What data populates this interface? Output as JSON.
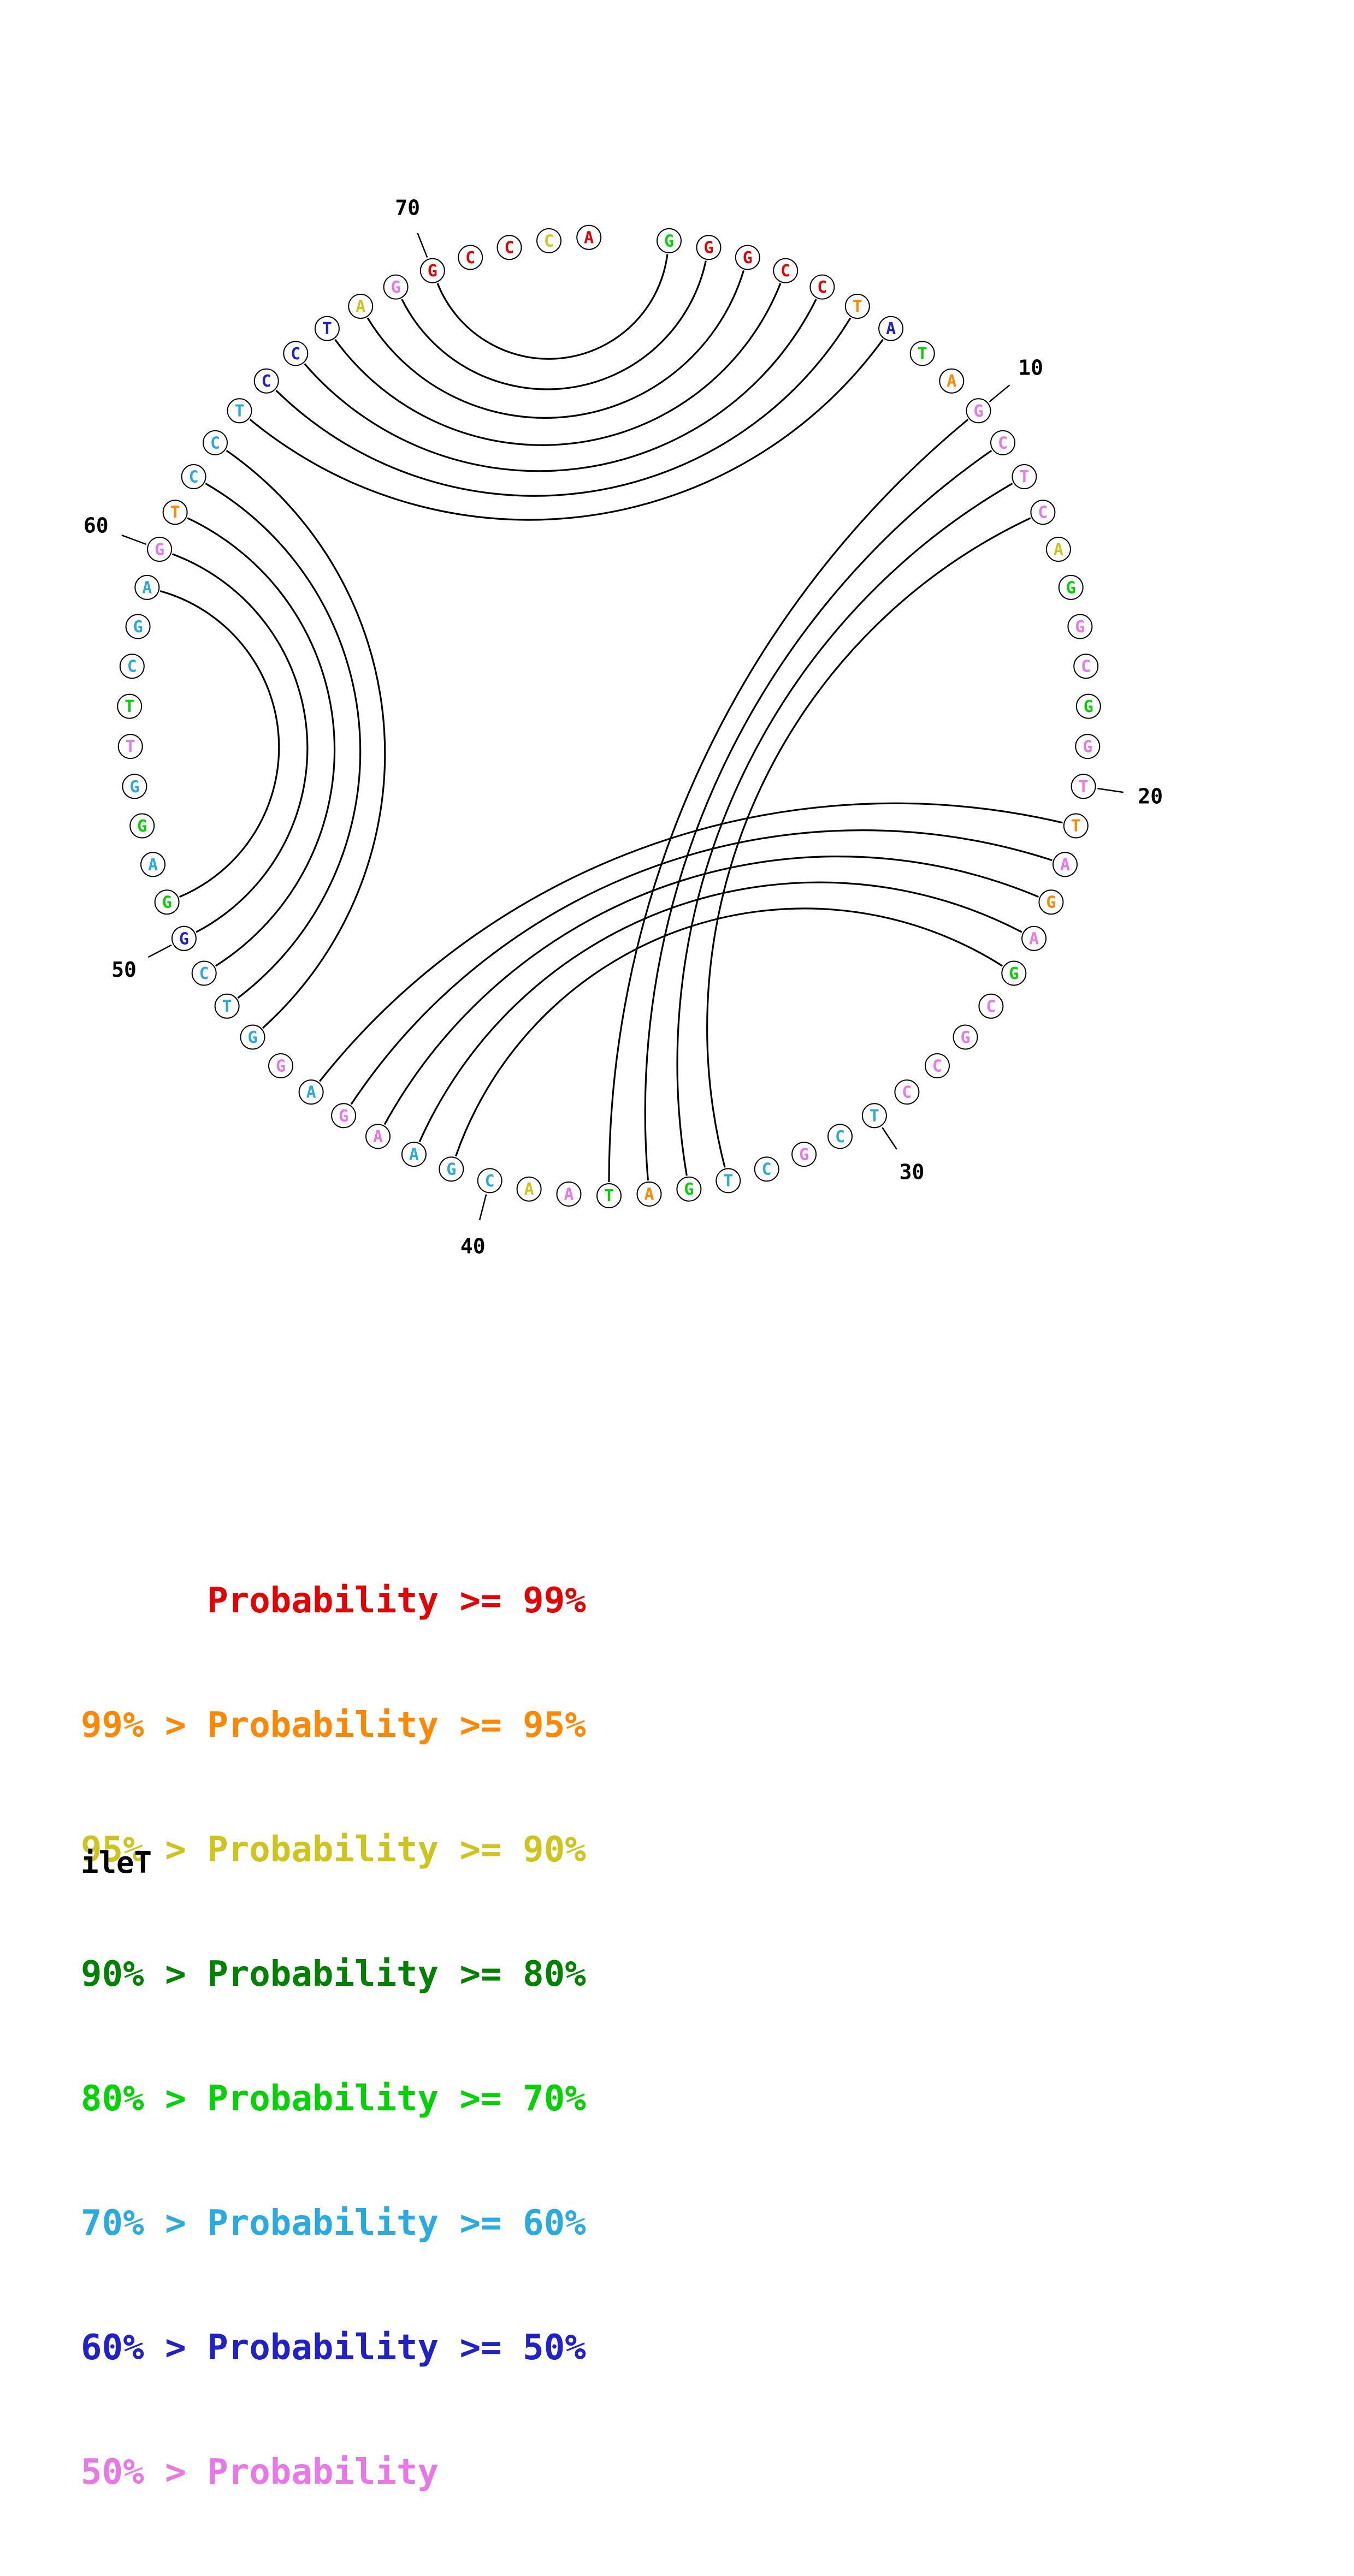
{
  "chart_data": {
    "type": "circular-rna-structure-probability-plot",
    "title": "ileT",
    "n_nucleotides": 74,
    "sequence": "GGGCCTATAGCTCAGGCGGTTAGAGCGCCTCGCTGATAACGAAGAGGTCGGAGGTTCGAGTCCTCCTAGGCCCA",
    "position_labels": [
      10,
      20,
      30,
      40,
      50,
      60,
      70
    ],
    "palette": {
      "p99": "#e60000",
      "p95": "#ff8800",
      "p90": "#cdc41c",
      "p80": "#008200",
      "p70": "#00d400",
      "p60": "#2aabe0",
      "p50": "#2121cc",
      "lt50": "#e878e8"
    },
    "nucleotides": [
      {
        "pos": 1,
        "base": "G",
        "level": "p70"
      },
      {
        "pos": 2,
        "base": "G",
        "level": "p99"
      },
      {
        "pos": 3,
        "base": "G",
        "level": "p99"
      },
      {
        "pos": 4,
        "base": "C",
        "level": "p99"
      },
      {
        "pos": 5,
        "base": "C",
        "level": "p99"
      },
      {
        "pos": 6,
        "base": "T",
        "level": "p95"
      },
      {
        "pos": 7,
        "base": "A",
        "level": "p50"
      },
      {
        "pos": 8,
        "base": "T",
        "level": "p70"
      },
      {
        "pos": 9,
        "base": "A",
        "level": "p95"
      },
      {
        "pos": 10,
        "base": "G",
        "level": "lt50"
      },
      {
        "pos": 11,
        "base": "C",
        "level": "lt50"
      },
      {
        "pos": 12,
        "base": "T",
        "level": "lt50"
      },
      {
        "pos": 13,
        "base": "C",
        "level": "lt50"
      },
      {
        "pos": 14,
        "base": "A",
        "level": "p90"
      },
      {
        "pos": 15,
        "base": "G",
        "level": "p70"
      },
      {
        "pos": 16,
        "base": "G",
        "level": "lt50"
      },
      {
        "pos": 17,
        "base": "C",
        "level": "lt50"
      },
      {
        "pos": 18,
        "base": "G",
        "level": "p70"
      },
      {
        "pos": 19,
        "base": "G",
        "level": "lt50"
      },
      {
        "pos": 20,
        "base": "T",
        "level": "lt50"
      },
      {
        "pos": 21,
        "base": "T",
        "level": "p95"
      },
      {
        "pos": 22,
        "base": "A",
        "level": "lt50"
      },
      {
        "pos": 23,
        "base": "G",
        "level": "p95"
      },
      {
        "pos": 24,
        "base": "A",
        "level": "lt50"
      },
      {
        "pos": 25,
        "base": "G",
        "level": "p70"
      },
      {
        "pos": 26,
        "base": "C",
        "level": "lt50"
      },
      {
        "pos": 27,
        "base": "G",
        "level": "lt50"
      },
      {
        "pos": 28,
        "base": "C",
        "level": "lt50"
      },
      {
        "pos": 29,
        "base": "C",
        "level": "lt50"
      },
      {
        "pos": 30,
        "base": "T",
        "level": "p60"
      },
      {
        "pos": 31,
        "base": "C",
        "level": "p60"
      },
      {
        "pos": 32,
        "base": "G",
        "level": "lt50"
      },
      {
        "pos": 33,
        "base": "C",
        "level": "p60"
      },
      {
        "pos": 34,
        "base": "T",
        "level": "p60"
      },
      {
        "pos": 35,
        "base": "G",
        "level": "p70"
      },
      {
        "pos": 36,
        "base": "A",
        "level": "p95"
      },
      {
        "pos": 37,
        "base": "T",
        "level": "p70"
      },
      {
        "pos": 38,
        "base": "A",
        "level": "lt50"
      },
      {
        "pos": 39,
        "base": "A",
        "level": "p90"
      },
      {
        "pos": 40,
        "base": "C",
        "level": "p60"
      },
      {
        "pos": 41,
        "base": "G",
        "level": "p60"
      },
      {
        "pos": 42,
        "base": "A",
        "level": "p60"
      },
      {
        "pos": 43,
        "base": "A",
        "level": "lt50"
      },
      {
        "pos": 44,
        "base": "G",
        "level": "lt50"
      },
      {
        "pos": 45,
        "base": "A",
        "level": "p60"
      },
      {
        "pos": 46,
        "base": "G",
        "level": "lt50"
      },
      {
        "pos": 47,
        "base": "G",
        "level": "p60"
      },
      {
        "pos": 48,
        "base": "T",
        "level": "p60"
      },
      {
        "pos": 49,
        "base": "C",
        "level": "p60"
      },
      {
        "pos": 50,
        "base": "G",
        "level": "p50"
      },
      {
        "pos": 51,
        "base": "G",
        "level": "p70"
      },
      {
        "pos": 52,
        "base": "A",
        "level": "p60"
      },
      {
        "pos": 53,
        "base": "G",
        "level": "p70"
      },
      {
        "pos": 54,
        "base": "G",
        "level": "p60"
      },
      {
        "pos": 55,
        "base": "T",
        "level": "lt50"
      },
      {
        "pos": 56,
        "base": "T",
        "level": "p70"
      },
      {
        "pos": 57,
        "base": "C",
        "level": "p60"
      },
      {
        "pos": 58,
        "base": "G",
        "level": "p60"
      },
      {
        "pos": 59,
        "base": "A",
        "level": "p60"
      },
      {
        "pos": 60,
        "base": "G",
        "level": "lt50"
      },
      {
        "pos": 61,
        "base": "T",
        "level": "p95"
      },
      {
        "pos": 62,
        "base": "C",
        "level": "p60"
      },
      {
        "pos": 63,
        "base": "C",
        "level": "p60"
      },
      {
        "pos": 64,
        "base": "T",
        "level": "p60"
      },
      {
        "pos": 65,
        "base": "C",
        "level": "p50"
      },
      {
        "pos": 66,
        "base": "C",
        "level": "p50"
      },
      {
        "pos": 67,
        "base": "T",
        "level": "p50"
      },
      {
        "pos": 68,
        "base": "A",
        "level": "p90"
      },
      {
        "pos": 69,
        "base": "G",
        "level": "lt50"
      },
      {
        "pos": 70,
        "base": "G",
        "level": "p99"
      },
      {
        "pos": 71,
        "base": "C",
        "level": "p99"
      },
      {
        "pos": 72,
        "base": "C",
        "level": "p99"
      },
      {
        "pos": 73,
        "base": "C",
        "level": "p90"
      },
      {
        "pos": 74,
        "base": "A",
        "level": "p99"
      }
    ],
    "pairs": [
      [
        1,
        70
      ],
      [
        2,
        69
      ],
      [
        3,
        68
      ],
      [
        4,
        67
      ],
      [
        5,
        66
      ],
      [
        6,
        65
      ],
      [
        7,
        64
      ],
      [
        10,
        37
      ],
      [
        11,
        36
      ],
      [
        12,
        35
      ],
      [
        13,
        34
      ],
      [
        21,
        45
      ],
      [
        22,
        44
      ],
      [
        23,
        43
      ],
      [
        24,
        42
      ],
      [
        25,
        41
      ],
      [
        47,
        63
      ],
      [
        48,
        62
      ],
      [
        49,
        61
      ],
      [
        50,
        60
      ],
      [
        51,
        59
      ]
    ],
    "legend": {
      "lines": [
        {
          "text": "      Probability >= 99%",
          "level": "p99"
        },
        {
          "text": "99% > Probability >= 95%",
          "level": "p95"
        },
        {
          "text": "95% > Probability >= 90%",
          "level": "p90"
        },
        {
          "text": "90% > Probability >= 80%",
          "level": "p80"
        },
        {
          "text": "80% > Probability >= 70%",
          "level": "p70"
        },
        {
          "text": "70% > Probability >= 60%",
          "level": "p60"
        },
        {
          "text": "60% > Probability >= 50%",
          "level": "p50"
        },
        {
          "text": "50% > Probability",
          "level": "lt50"
        }
      ]
    }
  }
}
